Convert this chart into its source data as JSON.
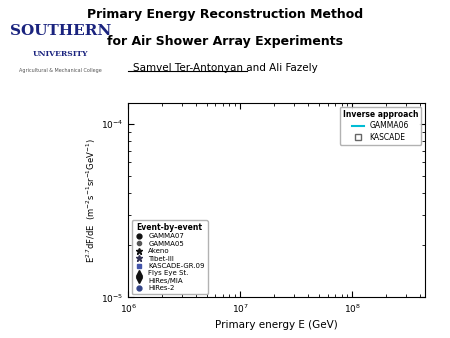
{
  "title_line1": "Primary Energy Reconstruction Method",
  "title_line2": "for Air Shower Array Experiments",
  "author_text": "Samvel Ter-Antonyan and Ali Fazely",
  "xlabel": "Primary energy E (GeV)",
  "xlim_log": [
    6,
    8.65
  ],
  "ylim_log_low": -4.75,
  "ylim_log_high": -3.88,
  "background_color": "#ffffff",
  "gamma06_color": "#00bcd4",
  "gamma06_band_alpha": 0.35,
  "legend1_title": "Inverse approach",
  "legend2_title": "Event-by-event",
  "southern_color": "#1a237e"
}
